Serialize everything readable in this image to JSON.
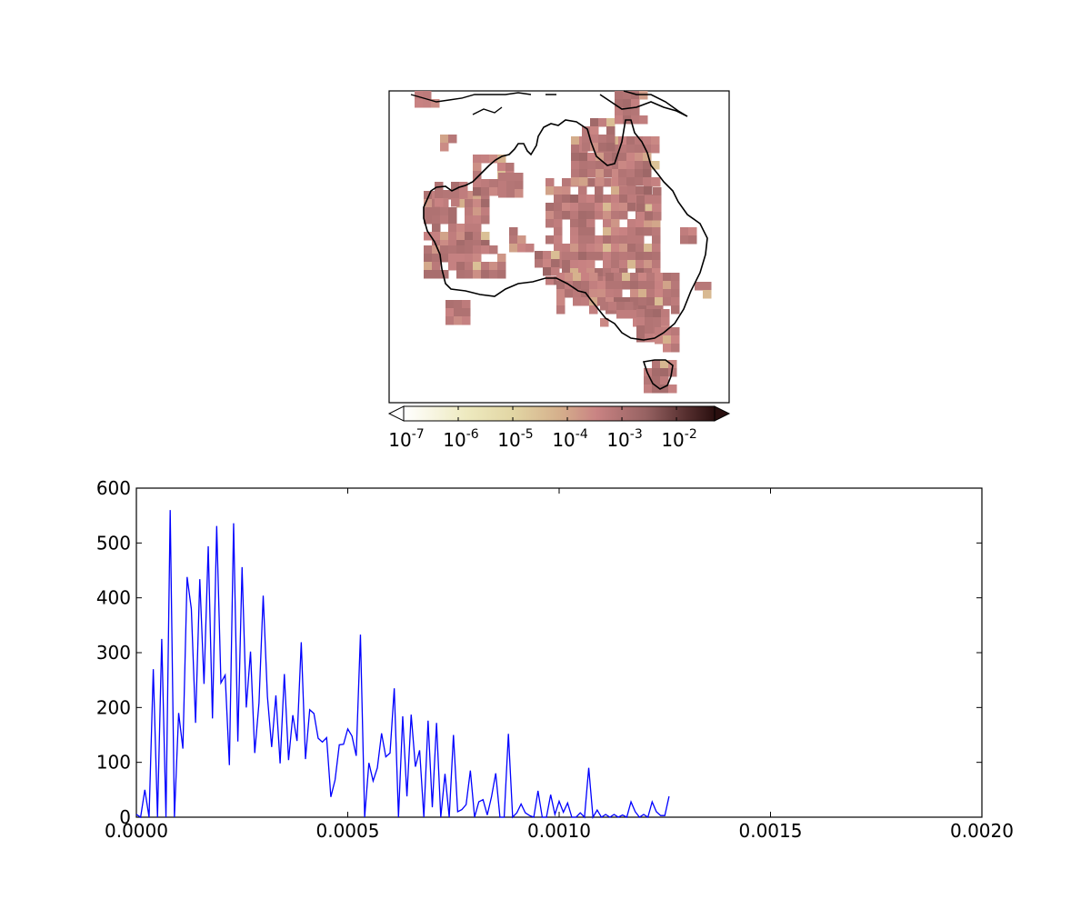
{
  "chart_data": [
    {
      "type": "heatmap",
      "title": "",
      "subplot": "map",
      "colorbar": {
        "scale": "log",
        "extend": "both",
        "ticks": [
          {
            "base": "10",
            "exp": "-7"
          },
          {
            "base": "10",
            "exp": "-6"
          },
          {
            "base": "10",
            "exp": "-5"
          },
          {
            "base": "10",
            "exp": "-4"
          },
          {
            "base": "10",
            "exp": "-3"
          },
          {
            "base": "10",
            "exp": "-2"
          }
        ],
        "range": [
          1e-07,
          0.05
        ],
        "colors": [
          "#ffffff",
          "#e8e4b0",
          "#d9b592",
          "#c98383",
          "#8a5a5a",
          "#2a0f0f"
        ]
      },
      "cell_values_log10": [
        [
          -3.1,
          -3.0,
          -3.2,
          -3.3,
          -3.0,
          -3.1,
          -3.2,
          -3.4,
          -3.5,
          -3.2
        ],
        [
          -3.3,
          -3.6,
          -4.2,
          -3.4,
          -3.5,
          -3.0,
          -3.1,
          -4.3,
          -3.3,
          -3.4
        ],
        [
          -3.0,
          -2.9,
          -3.1,
          -3.0,
          -2.8,
          -3.2,
          -3.6,
          -3.1,
          -3.0,
          -3.2
        ]
      ]
    },
    {
      "type": "line",
      "title": "",
      "xlabel": "",
      "ylabel": "",
      "xlim": [
        0.0,
        0.002
      ],
      "ylim": [
        0,
        600
      ],
      "xticks": [
        "0.0000",
        "0.0005",
        "0.0010",
        "0.0015",
        "0.0020"
      ],
      "yticks": [
        "0",
        "100",
        "200",
        "300",
        "400",
        "500",
        "600"
      ],
      "grid": false,
      "series": [
        {
          "color": "#0000ff",
          "x_start": 0.0,
          "x_step": 1e-05,
          "values": [
            5,
            0,
            50,
            0,
            270,
            0,
            325,
            0,
            560,
            0,
            190,
            125,
            438,
            380,
            172,
            434,
            243,
            494,
            180,
            531,
            245,
            259,
            95,
            536,
            138,
            456,
            200,
            302,
            117,
            208,
            404,
            220,
            128,
            222,
            98,
            261,
            104,
            186,
            139,
            319,
            106,
            196,
            189,
            144,
            137,
            145,
            37,
            68,
            132,
            133,
            161,
            148,
            112,
            333,
            0,
            99,
            66,
            90,
            153,
            110,
            117,
            235,
            0,
            184,
            38,
            187,
            92,
            122,
            0,
            176,
            18,
            172,
            0,
            79,
            0,
            150,
            10,
            14,
            23,
            85,
            0,
            28,
            32,
            4,
            37,
            80,
            0,
            0,
            152,
            0,
            8,
            24,
            8,
            3,
            0,
            48,
            0,
            0,
            41,
            5,
            29,
            9,
            26,
            0,
            0,
            8,
            0,
            90,
            0,
            13,
            0,
            5,
            0,
            5,
            0,
            4,
            0,
            28,
            10,
            0,
            5,
            0,
            28,
            10,
            3,
            3,
            38
          ]
        }
      ]
    }
  ]
}
